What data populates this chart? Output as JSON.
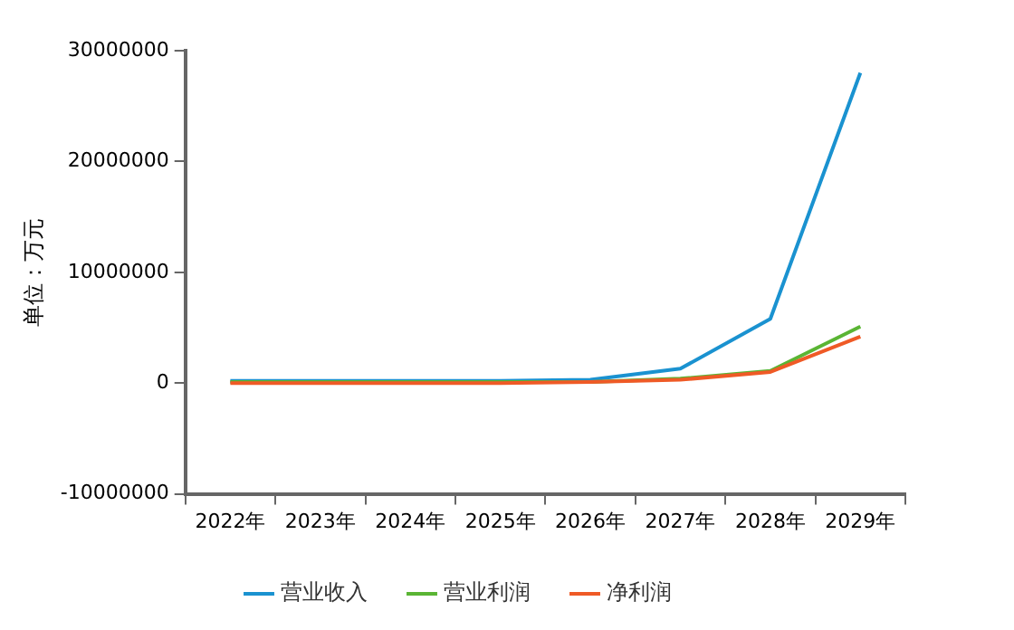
{
  "chart_data": {
    "type": "line",
    "ylabel": "单位：万元",
    "categories": [
      "2022年",
      "2023年",
      "2024年",
      "2025年",
      "2026年",
      "2027年",
      "2028年",
      "2029年"
    ],
    "series": [
      {
        "name": "营业收入",
        "color": "#1a92d0",
        "values": [
          200000,
          200000,
          200000,
          200000,
          300000,
          1300000,
          5800000,
          28000000
        ]
      },
      {
        "name": "营业利润",
        "color": "#5ab534",
        "values": [
          100000,
          100000,
          100000,
          100000,
          100000,
          400000,
          1100000,
          5100000
        ]
      },
      {
        "name": "净利润",
        "color": "#ef5a26",
        "values": [
          0,
          0,
          0,
          0,
          100000,
          300000,
          1000000,
          4200000
        ]
      }
    ],
    "ylim": [
      -10000000,
      30000000
    ],
    "yticks": [
      -10000000,
      0,
      10000000,
      20000000,
      30000000
    ],
    "grid": false,
    "legend": "bottom",
    "marker": "none",
    "line_style": "solid"
  }
}
